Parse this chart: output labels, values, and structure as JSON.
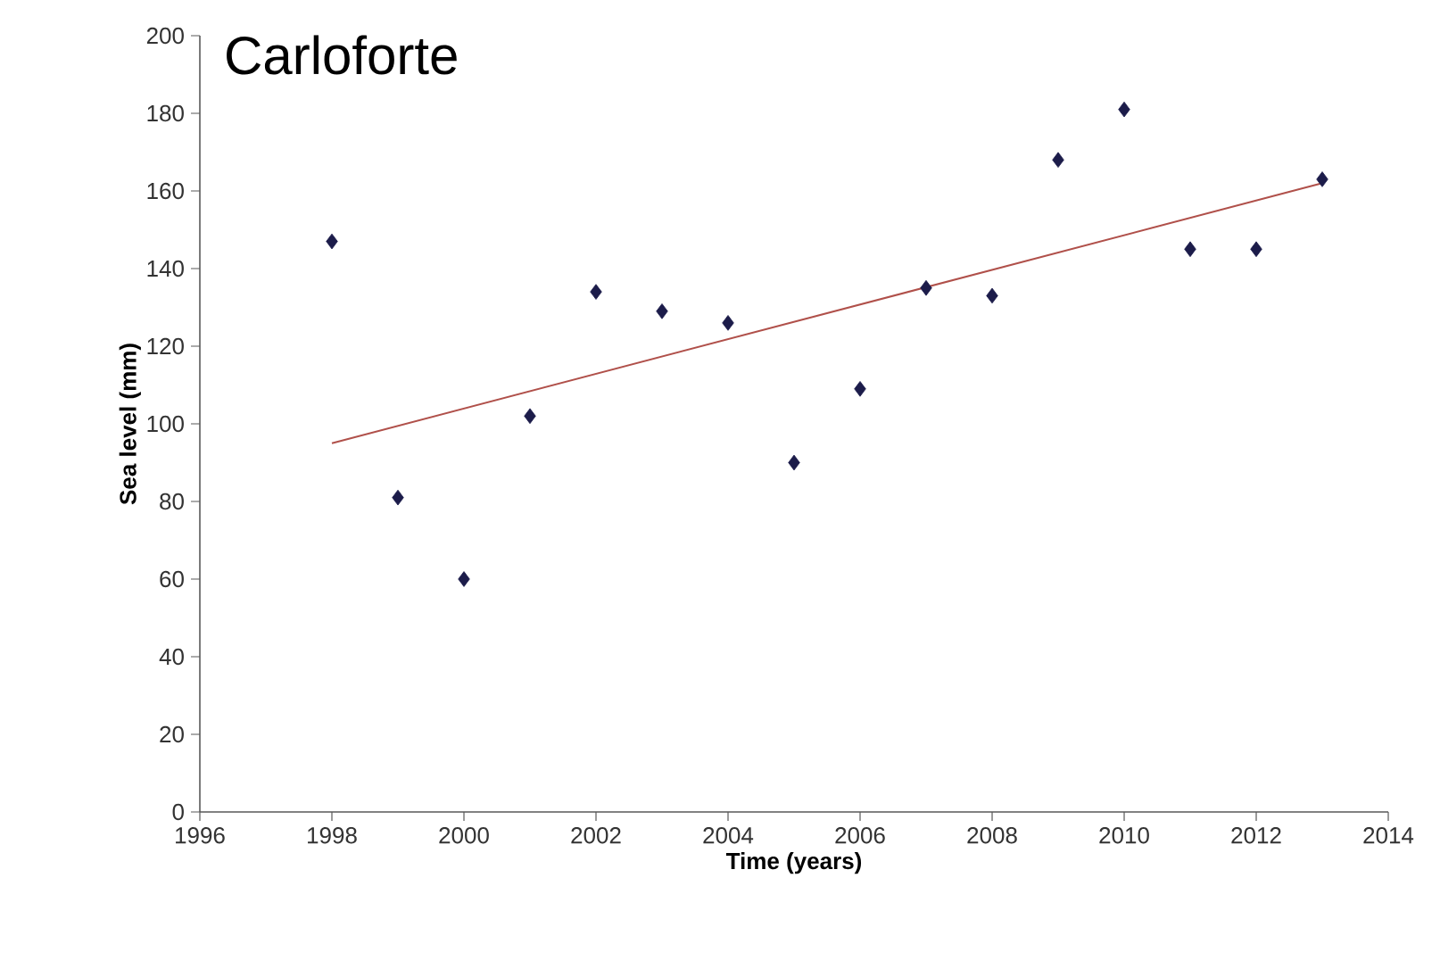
{
  "chart_data": {
    "type": "scatter",
    "title": "Carloforte",
    "xlabel": "Time (years)",
    "ylabel": "Sea level (mm)",
    "x": [
      1998,
      1999,
      2000,
      2001,
      2002,
      2003,
      2004,
      2005,
      2006,
      2007,
      2008,
      2009,
      2010,
      2011,
      2012,
      2013
    ],
    "series": [
      {
        "color": "#1c1c4a",
        "marker": "diamond",
        "values": [
          147,
          81,
          60,
          102,
          134,
          129,
          126,
          90,
          109,
          135,
          133,
          168,
          181,
          145,
          145,
          163
        ]
      },
      {
        "type": "line",
        "color": "#b0504a",
        "marker": "none",
        "line_style": "solid",
        "x": [
          1998,
          2013
        ],
        "values": [
          95,
          162
        ]
      }
    ],
    "xlim": [
      1996,
      2014
    ],
    "ylim": [
      0,
      200
    ],
    "xticks": [
      1996,
      1998,
      2000,
      2002,
      2004,
      2006,
      2008,
      2010,
      2012,
      2014
    ],
    "yticks": [
      0,
      20,
      40,
      60,
      80,
      100,
      120,
      140,
      160,
      180,
      200
    ],
    "grid": false
  }
}
